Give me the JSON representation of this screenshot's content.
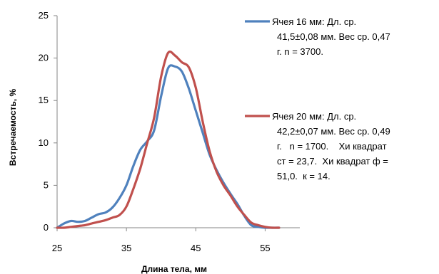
{
  "chart_data": {
    "type": "line",
    "xlabel": "Длина тела, мм",
    "ylabel": "Встречаемость, %",
    "xlim": [
      25,
      60
    ],
    "ylim": [
      0,
      25
    ],
    "x_ticks": [
      "25",
      "35",
      "45",
      "55"
    ],
    "y_ticks": [
      "0",
      "5",
      "10",
      "15",
      "20",
      "25"
    ],
    "grid": false,
    "legend_position": "right",
    "series": [
      {
        "name": "Ячея 16 мм: Дл. ср. 41,5±0,08 мм. Вес ср. 0,47 г. n = 3700.",
        "legend_lines": [
          "Ячея 16 мм: Дл. ср.",
          "41,5±0,08 мм. Вес ср. 0,47",
          "г. n = 3700."
        ],
        "color": "#4F81BD",
        "x": [
          25,
          26,
          27,
          28,
          29,
          30,
          31,
          32,
          33,
          34,
          35,
          36,
          37,
          38,
          39,
          40,
          41,
          42,
          43,
          44,
          45,
          46,
          47,
          48,
          49,
          50,
          51,
          52,
          53,
          54,
          55,
          56,
          57
        ],
        "y": [
          0,
          0.5,
          0.8,
          0.7,
          0.8,
          1.2,
          1.6,
          1.8,
          2.4,
          3.5,
          5.0,
          7.3,
          9.2,
          10.2,
          11.5,
          15.5,
          18.8,
          19.0,
          18.4,
          16.4,
          13.8,
          11.2,
          8.6,
          6.8,
          5.3,
          4.0,
          2.8,
          1.4,
          0.3,
          0.1,
          0,
          0,
          0
        ]
      },
      {
        "name": "Ячея 20 мм: Дл. ср. 42,2±0,07 мм. Вес ср. 0,49 г. n = 1700. Хи квадрат ст = 23,7. Хи квадрат ф = 51,0. к = 14.",
        "legend_lines": [
          "Ячея 20 мм: Дл. ср.",
          "42,2±0,07 мм. Вес ср. 0,49",
          "г.   n = 1700.    Хи квадрат",
          "ст = 23,7.  Хи квадрат ф =",
          "51,0.  к = 14."
        ],
        "color": "#C0504D",
        "x": [
          25,
          26,
          27,
          28,
          29,
          30,
          31,
          32,
          33,
          34,
          35,
          36,
          37,
          38,
          39,
          40,
          41,
          42,
          43,
          44,
          45,
          46,
          47,
          48,
          49,
          50,
          51,
          52,
          53,
          54,
          55,
          56,
          57
        ],
        "y": [
          0,
          0,
          0.1,
          0.2,
          0.3,
          0.5,
          0.7,
          0.9,
          1.2,
          1.5,
          2.5,
          4.6,
          7.0,
          10.0,
          13.0,
          17.8,
          20.6,
          20.3,
          19.5,
          18.9,
          16.5,
          12.5,
          9.0,
          6.6,
          5.0,
          3.8,
          2.5,
          1.5,
          0.6,
          0.3,
          0.1,
          0,
          0
        ]
      }
    ]
  }
}
